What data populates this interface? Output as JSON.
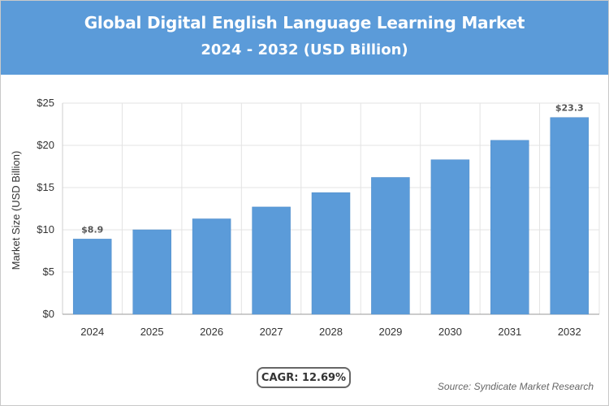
{
  "header": {
    "title": "Global Digital English Language Learning Market",
    "subtitle": "2024 - 2032 (USD Billion)"
  },
  "chart_data": {
    "type": "bar",
    "title": "Global Digital English Language Learning Market",
    "subtitle": "2024 - 2032 (USD Billion)",
    "categories": [
      "2024",
      "2025",
      "2026",
      "2027",
      "2028",
      "2029",
      "2030",
      "2031",
      "2032"
    ],
    "values": [
      8.9,
      10.0,
      11.3,
      12.7,
      14.4,
      16.2,
      18.3,
      20.6,
      23.3
    ],
    "value_labels": [
      "$8.9",
      "",
      "",
      "",
      "",
      "",
      "",
      "",
      "$23.3"
    ],
    "ylabel": "Market Size (USD Billion)",
    "xlabel": "",
    "ylim": [
      0,
      25
    ],
    "yticks": [
      0,
      5,
      10,
      15,
      20,
      25
    ],
    "ytick_labels": [
      "$0",
      "$5",
      "$10",
      "$15",
      "$20",
      "$25"
    ],
    "grid": true,
    "legend": "none",
    "bar_color": "#5b9bd9"
  },
  "footer": {
    "cagr": "CAGR: 12.69%",
    "source": "Source: Syndicate Market Research"
  },
  "colors": {
    "header_bg": "#5b9bd9",
    "bar": "#5b9bd9",
    "grid": "#e3e3e3"
  }
}
